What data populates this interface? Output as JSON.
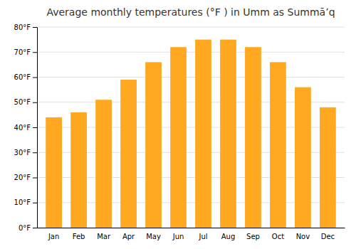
{
  "chart_data": {
    "type": "bar",
    "title": "Average monthly temperatures (°F ) in Umm as Summāʼq",
    "categories": [
      "Jan",
      "Feb",
      "Mar",
      "Apr",
      "May",
      "Jun",
      "Jul",
      "Aug",
      "Sep",
      "Oct",
      "Nov",
      "Dec"
    ],
    "values": [
      44,
      46,
      51,
      59,
      66,
      72,
      75,
      75,
      72,
      66,
      56,
      48
    ],
    "color": "#FFA820",
    "ylim": [
      0,
      80
    ],
    "yticks": [
      {
        "value": 0,
        "label": "0°F"
      },
      {
        "value": 10,
        "label": "10°F"
      },
      {
        "value": 20,
        "label": "20°F"
      },
      {
        "value": 30,
        "label": "30°F"
      },
      {
        "value": 40,
        "label": "40°F"
      },
      {
        "value": 50,
        "label": "50°F"
      },
      {
        "value": 60,
        "label": "60°F"
      },
      {
        "value": 70,
        "label": "70°F"
      },
      {
        "value": 80,
        "label": "80°F"
      }
    ],
    "grid": true
  }
}
